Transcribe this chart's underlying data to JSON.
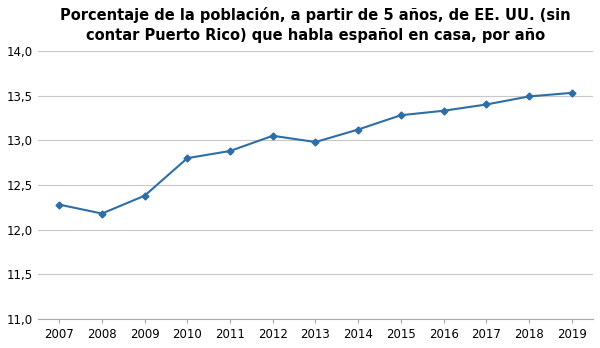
{
  "title": "Porcentaje de la población, a partir de 5 años, de EE. UU. (sin\ncontar Puerto Rico) que habla español en casa, por año",
  "years": [
    2007,
    2008,
    2009,
    2010,
    2011,
    2012,
    2013,
    2014,
    2015,
    2016,
    2017,
    2018,
    2019
  ],
  "values": [
    12.28,
    12.18,
    12.38,
    12.8,
    12.88,
    13.05,
    12.98,
    13.12,
    13.28,
    13.33,
    13.4,
    13.49,
    13.53
  ],
  "line_color": "#2E6EA6",
  "marker": "D",
  "marker_size": 3.5,
  "ylim": [
    11.0,
    14.0
  ],
  "yticks": [
    11.0,
    11.5,
    12.0,
    12.5,
    13.0,
    13.5,
    14.0
  ],
  "ytick_labels": [
    "11,0",
    "11,5",
    "12,0",
    "12,5",
    "13,0",
    "13,5",
    "14,0"
  ],
  "grid_color": "#C8C8C8",
  "background_color": "#FFFFFF",
  "title_fontsize": 10.5,
  "tick_fontsize": 8.5,
  "linewidth": 1.5,
  "figsize": [
    6.0,
    3.48
  ],
  "dpi": 100
}
